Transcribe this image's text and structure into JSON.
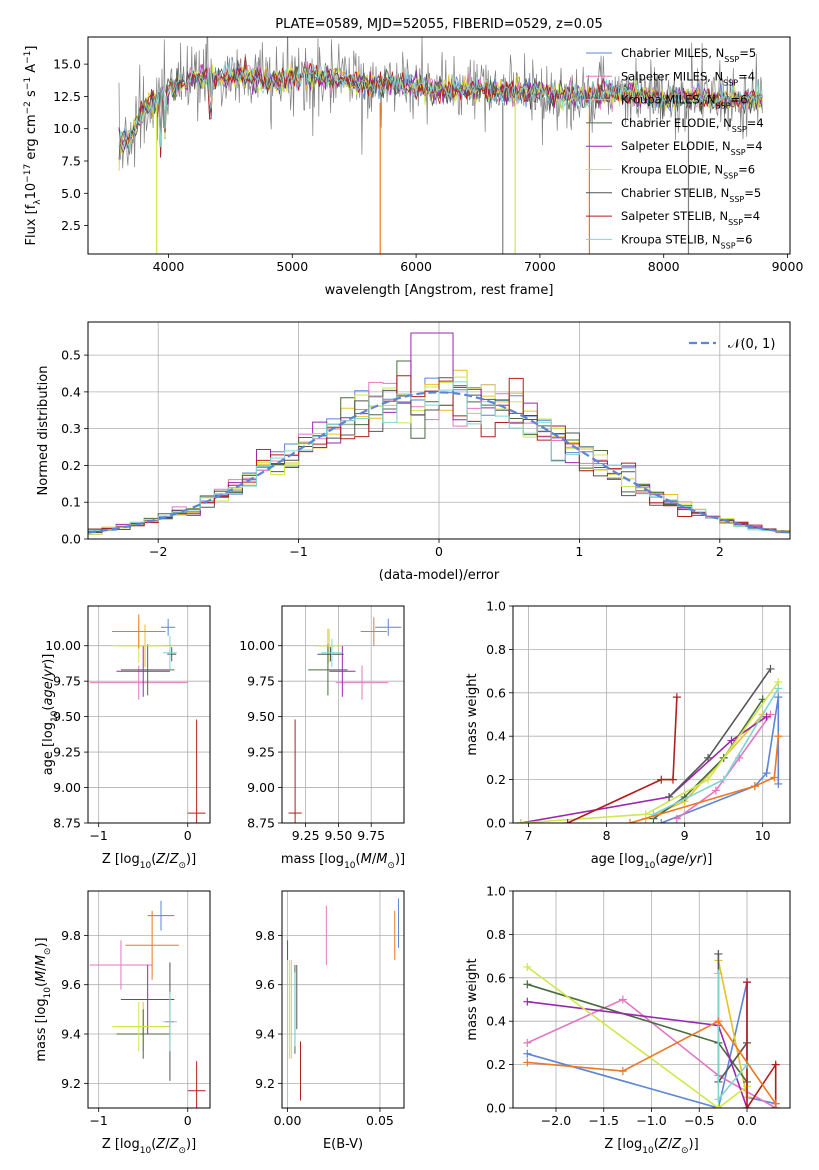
{
  "colors": {
    "Chabrier MILES": "#5b85d6",
    "Salpeter MILES": "#e377c2",
    "Kroupa MILES": "#e6c229",
    "Chabrier ELODIE": "#4a6a3f",
    "Salpeter ELODIE": "#9b27b0",
    "Kroupa ELODIE": "#cfe84a",
    "Chabrier STELIB": "#555555",
    "Salpeter STELIB": "#b21e1e",
    "Kroupa STELIB": "#80d5d2",
    "data": "#808080",
    "orange": "#ee7722",
    "gauss": "#5b85d6"
  },
  "chart_data": [
    {
      "id": "spectrum",
      "type": "line",
      "title": "PLATE=0589, MJD=52055, FIBERID=0529, z=0.05",
      "xlabel": "wavelength [Angstrom, rest frame]",
      "ylabel_parts": [
        "Flux [f",
        "λ",
        "10",
        "−17",
        " erg cm",
        "−2",
        " s",
        "−1",
        " A",
        "−1",
        "]"
      ],
      "xlim": [
        3350,
        9020
      ],
      "ylim": [
        0.3,
        17.1
      ],
      "xticks": [
        4000,
        5000,
        6000,
        7000,
        8000,
        9000
      ],
      "yticks": [
        2.5,
        5.0,
        7.5,
        10.0,
        12.5,
        15.0
      ],
      "xtick_labels": [
        "4000",
        "5000",
        "6000",
        "7000",
        "8000",
        "9000"
      ],
      "ytick_labels": [
        "2.5",
        "5.0",
        "7.5",
        "10.0",
        "12.5",
        "15.0"
      ],
      "continuum": [
        [
          3600,
          8.5
        ],
        [
          3700,
          9.5
        ],
        [
          3800,
          11.5
        ],
        [
          3950,
          12.5
        ],
        [
          4050,
          13.2
        ],
        [
          4200,
          14.0
        ],
        [
          4400,
          13.8
        ],
        [
          4600,
          14.2
        ],
        [
          4800,
          13.6
        ],
        [
          5000,
          13.9
        ],
        [
          5200,
          14.0
        ],
        [
          5400,
          13.8
        ],
        [
          5600,
          13.5
        ],
        [
          5800,
          13.5
        ],
        [
          6000,
          13.3
        ],
        [
          6200,
          13.0
        ],
        [
          6500,
          13.0
        ],
        [
          6800,
          12.8
        ],
        [
          7000,
          12.9
        ],
        [
          7200,
          12.5
        ],
        [
          7500,
          12.7
        ],
        [
          7700,
          12.8
        ],
        [
          8000,
          12.2
        ],
        [
          8200,
          12.5
        ],
        [
          8400,
          12.3
        ],
        [
          8600,
          12.2
        ],
        [
          8800,
          12.4
        ]
      ],
      "series": [
        {
          "name": "Chabrier MILES",
          "n_ssp": "=5"
        },
        {
          "name": "Salpeter MILES",
          "n_ssp": "=4"
        },
        {
          "name": "Kroupa MILES",
          "n_ssp": "=6"
        },
        {
          "name": "Chabrier ELODIE",
          "n_ssp": "=4"
        },
        {
          "name": "Salpeter ELODIE",
          "n_ssp": "=4"
        },
        {
          "name": "Kroupa ELODIE",
          "n_ssp": "=6"
        },
        {
          "name": "Chabrier STELIB",
          "n_ssp": "=5"
        },
        {
          "name": "Salpeter STELIB",
          "n_ssp": "=4"
        },
        {
          "name": "Kroupa STELIB",
          "n_ssp": "=6"
        }
      ],
      "legend": "upper right"
    },
    {
      "id": "residuals",
      "type": "histogram",
      "xlabel": "(data-model)/error",
      "ylabel": "Normed distribution",
      "xlim": [
        -2.5,
        2.5
      ],
      "ylim": [
        0,
        0.59
      ],
      "xticks": [
        -2,
        -1,
        0,
        1,
        2
      ],
      "yticks": [
        0.0,
        0.1,
        0.2,
        0.3,
        0.4,
        0.5
      ],
      "xtick_labels": [
        "−2",
        "−1",
        "0",
        "1",
        "2"
      ],
      "ytick_labels": [
        "0.0",
        "0.1",
        "0.2",
        "0.3",
        "0.4",
        "0.5"
      ],
      "legend_label": "𝒩(0, 1)",
      "legend": "upper right",
      "bin_width": 0.1
    },
    {
      "id": "age_vs_Z",
      "type": "errorbar",
      "xlabel": "Z [log10(Z/Z⊙)]",
      "ylabel": "age  [log10(age/yr)]",
      "xlim": [
        -1.12,
        0.25
      ],
      "ylim": [
        8.75,
        10.28
      ],
      "xticks": [
        -1,
        0
      ],
      "xtick_labels": [
        "−1",
        "0"
      ],
      "yticks": [
        8.75,
        9.0,
        9.25,
        9.5,
        9.75,
        10.0
      ],
      "ytick_labels": [
        "8.75",
        "9.00",
        "9.25",
        "9.50",
        "9.75",
        "10.00"
      ],
      "points": [
        {
          "s": "Chabrier MILES",
          "x": -0.22,
          "xe": 0.08,
          "y": 10.13,
          "ye": 0.06
        },
        {
          "s": "Salpeter MILES",
          "x": -0.55,
          "xe": 0.55,
          "y": 9.74,
          "ye": 0.12
        },
        {
          "s": "Kroupa MILES",
          "x": -0.48,
          "xe": 0.3,
          "y": 10.0,
          "ye": 0.15
        },
        {
          "s": "Chabrier ELODIE",
          "x": -0.45,
          "xe": 0.3,
          "y": 9.83,
          "ye": 0.18
        },
        {
          "s": "Salpeter ELODIE",
          "x": -0.5,
          "xe": 0.3,
          "y": 9.82,
          "ye": 0.18
        },
        {
          "s": "Kroupa ELODIE",
          "x": -0.55,
          "xe": 0.3,
          "y": 10.0,
          "ye": 0.12
        },
        {
          "s": "Chabrier STELIB",
          "x": -0.18,
          "xe": 0.05,
          "y": 9.94,
          "ye": 0.05
        },
        {
          "s": "Salpeter STELIB",
          "x": 0.1,
          "xe": 0.1,
          "y": 8.82,
          "ye": 0.66
        },
        {
          "s": "Kroupa STELIB",
          "x": -0.2,
          "xe": 0.08,
          "y": 9.95,
          "ye": 0.12
        },
        {
          "s": "orange",
          "x": -0.55,
          "xe": 0.3,
          "y": 10.1,
          "ye": 0.12
        }
      ]
    },
    {
      "id": "age_vs_mass",
      "type": "errorbar",
      "xlabel": "mass [log10(M/M⊙)]",
      "xlim": [
        9.07,
        10.0
      ],
      "ylim": [
        8.75,
        10.28
      ],
      "xticks": [
        9.25,
        9.5,
        9.75
      ],
      "xtick_labels": [
        "9.25",
        "9.50",
        "9.75"
      ],
      "yticks": [
        8.75,
        9.0,
        9.25,
        9.5,
        9.75,
        10.0
      ],
      "ytick_labels": [
        "8.75",
        "9.00",
        "9.25",
        "9.50",
        "9.75",
        "10.00"
      ],
      "points": [
        {
          "s": "Chabrier MILES",
          "x": 9.88,
          "xe": 0.1,
          "y": 10.13,
          "ye": 0.06
        },
        {
          "s": "Salpeter MILES",
          "x": 9.68,
          "xe": 0.2,
          "y": 9.74,
          "ye": 0.12
        },
        {
          "s": "Kroupa MILES",
          "x": 9.42,
          "xe": 0.1,
          "y": 10.0,
          "ye": 0.12
        },
        {
          "s": "Chabrier ELODIE",
          "x": 9.42,
          "xe": 0.15,
          "y": 9.83,
          "ye": 0.18
        },
        {
          "s": "Salpeter ELODIE",
          "x": 9.53,
          "xe": 0.1,
          "y": 9.82,
          "ye": 0.18
        },
        {
          "s": "Kroupa ELODIE",
          "x": 9.43,
          "xe": 0.1,
          "y": 10.0,
          "ye": 0.12
        },
        {
          "s": "Chabrier STELIB",
          "x": 9.44,
          "xe": 0.1,
          "y": 9.94,
          "ye": 0.05
        },
        {
          "s": "Salpeter STELIB",
          "x": 9.17,
          "xe": 0.05,
          "y": 8.82,
          "ye": 0.66
        },
        {
          "s": "Kroupa STELIB",
          "x": 9.45,
          "xe": 0.08,
          "y": 9.95,
          "ye": 0.1
        },
        {
          "s": "orange",
          "x": 9.77,
          "xe": 0.1,
          "y": 10.1,
          "ye": 0.1
        }
      ]
    },
    {
      "id": "mw_vs_age",
      "type": "line",
      "xlabel": "age  [log10(age/yr)]",
      "ylabel": "mass weight",
      "xlim": [
        6.8,
        10.35
      ],
      "ylim": [
        0,
        1
      ],
      "xticks": [
        7,
        8,
        9,
        10
      ],
      "xtick_labels": [
        "7",
        "8",
        "9",
        "10"
      ],
      "yticks": [
        0,
        0.2,
        0.4,
        0.6,
        0.8,
        1.0
      ],
      "ytick_labels": [
        "0.0",
        "0.2",
        "0.4",
        "0.6",
        "0.8",
        "1.0"
      ],
      "series": [
        {
          "s": "Chabrier MILES",
          "x": [
            8.7,
            9.9,
            10.05,
            10.2,
            10.2
          ],
          "y": [
            0.0,
            0.17,
            0.23,
            0.58,
            0.18
          ]
        },
        {
          "s": "Salpeter MILES",
          "x": [
            8.9,
            9.4,
            9.7,
            10.1
          ],
          "y": [
            0.02,
            0.15,
            0.3,
            0.5
          ]
        },
        {
          "s": "Kroupa MILES",
          "x": [
            8.5,
            9.0,
            9.5,
            10.0
          ],
          "y": [
            0.02,
            0.1,
            0.3,
            0.5
          ]
        },
        {
          "s": "Chabrier ELODIE",
          "x": [
            8.6,
            9.0,
            9.5,
            10.0
          ],
          "y": [
            0.02,
            0.12,
            0.3,
            0.57
          ]
        },
        {
          "s": "Salpeter ELODIE",
          "x": [
            6.9,
            8.8,
            9.6,
            10.05
          ],
          "y": [
            0.0,
            0.12,
            0.38,
            0.49
          ]
        },
        {
          "s": "Kroupa ELODIE",
          "x": [
            6.9,
            8.5,
            9.3,
            10.2
          ],
          "y": [
            0.0,
            0.04,
            0.2,
            0.65
          ]
        },
        {
          "s": "Chabrier STELIB",
          "x": [
            8.8,
            9.3,
            10.1
          ],
          "y": [
            0.12,
            0.3,
            0.71
          ]
        },
        {
          "s": "Salpeter STELIB",
          "x": [
            7.5,
            8.7,
            8.85,
            8.9
          ],
          "y": [
            0.0,
            0.2,
            0.2,
            0.58
          ]
        },
        {
          "s": "Kroupa STELIB",
          "x": [
            8.6,
            9.5,
            10.2
          ],
          "y": [
            0.04,
            0.2,
            0.62
          ]
        },
        {
          "s": "orange",
          "x": [
            8.3,
            9.9,
            10.15,
            10.2
          ],
          "y": [
            0.0,
            0.17,
            0.21,
            0.4
          ]
        }
      ]
    },
    {
      "id": "mass_vs_Z",
      "type": "errorbar",
      "xlabel": "Z [log10(Z/Z⊙)]",
      "ylabel": "mass [log10(M/M⊙)]",
      "xlim": [
        -1.12,
        0.25
      ],
      "ylim": [
        9.1,
        9.98
      ],
      "xticks": [
        -1,
        0
      ],
      "xtick_labels": [
        "−1",
        "0"
      ],
      "yticks": [
        9.2,
        9.4,
        9.6,
        9.8
      ],
      "ytick_labels": [
        "9.2",
        "9.4",
        "9.6",
        "9.8"
      ],
      "points": [
        {
          "s": "Chabrier MILES",
          "x": -0.3,
          "xe": 0.15,
          "y": 9.88,
          "ye": 0.06
        },
        {
          "s": "Salpeter MILES",
          "x": -0.75,
          "xe": 0.35,
          "y": 9.68,
          "ye": 0.1
        },
        {
          "s": "Kroupa MILES",
          "x": -0.5,
          "xe": 0.3,
          "y": 9.43,
          "ye": 0.1
        },
        {
          "s": "Chabrier ELODIE",
          "x": -0.5,
          "xe": 0.3,
          "y": 9.4,
          "ye": 0.1
        },
        {
          "s": "Salpeter ELODIE",
          "x": -0.45,
          "xe": 0.3,
          "y": 9.54,
          "ye": 0.14
        },
        {
          "s": "Kroupa ELODIE",
          "x": -0.55,
          "xe": 0.3,
          "y": 9.43,
          "ye": 0.1
        },
        {
          "s": "Chabrier STELIB",
          "x": -0.2,
          "xe": 0.05,
          "y": 9.45,
          "ye": 0.24
        },
        {
          "s": "Salpeter STELIB",
          "x": 0.1,
          "xe": 0.1,
          "y": 9.17,
          "ye": 0.12
        },
        {
          "s": "Kroupa STELIB",
          "x": -0.2,
          "xe": 0.08,
          "y": 9.45,
          "ye": 0.12
        },
        {
          "s": "orange",
          "x": -0.4,
          "xe": 0.3,
          "y": 9.76,
          "ye": 0.14
        }
      ]
    },
    {
      "id": "mass_vs_ebv",
      "type": "errorbar",
      "xlabel": "E(B-V)",
      "xlim": [
        -0.003,
        0.063
      ],
      "ylim": [
        9.1,
        9.98
      ],
      "xticks": [
        0.0,
        0.05
      ],
      "xtick_labels": [
        "0.00",
        "0.05"
      ],
      "yticks": [
        9.2,
        9.4,
        9.6,
        9.8
      ],
      "ytick_labels": [
        "9.2",
        "9.4",
        "9.6",
        "9.8"
      ],
      "points": [
        {
          "s": "Chabrier MILES",
          "x": 0.06,
          "xe": 0,
          "y": 9.85,
          "ye": 0.1
        },
        {
          "s": "Salpeter MILES",
          "x": 0.021,
          "xe": 0,
          "y": 9.8,
          "ye": 0.12
        },
        {
          "s": "Kroupa MILES",
          "x": 0.002,
          "xe": 0,
          "y": 9.5,
          "ye": 0.2
        },
        {
          "s": "Chabrier ELODIE",
          "x": 0.004,
          "xe": 0,
          "y": 9.5,
          "ye": 0.18
        },
        {
          "s": "Salpeter ELODIE",
          "x": 0.0,
          "xe": 0,
          "y": 9.74,
          "ye": 0.04
        },
        {
          "s": "Kroupa ELODIE",
          "x": 0.001,
          "xe": 0,
          "y": 9.5,
          "ye": 0.2
        },
        {
          "s": "Chabrier STELIB",
          "x": 0.005,
          "xe": 0,
          "y": 9.55,
          "ye": 0.13
        },
        {
          "s": "Salpeter STELIB",
          "x": 0.007,
          "xe": 0,
          "y": 9.25,
          "ye": 0.12
        },
        {
          "s": "Kroupa STELIB",
          "x": 0.004,
          "xe": 0,
          "y": 9.5,
          "ye": 0.15
        },
        {
          "s": "orange",
          "x": 0.058,
          "xe": 0,
          "y": 9.8,
          "ye": 0.1
        }
      ]
    },
    {
      "id": "mw_vs_Z",
      "type": "line",
      "xlabel": "Z [log10(Z/Z⊙)]",
      "ylabel": "mass weight",
      "xlim": [
        -2.45,
        0.45
      ],
      "ylim": [
        0,
        1
      ],
      "xticks": [
        -2.0,
        -1.5,
        -1.0,
        -0.5,
        0.0
      ],
      "xtick_labels": [
        "−2.0",
        "−1.5",
        "−1.0",
        "−0.5",
        "0.0"
      ],
      "yticks": [
        0,
        0.2,
        0.4,
        0.6,
        0.8,
        1.0
      ],
      "ytick_labels": [
        "0.0",
        "0.2",
        "0.4",
        "0.6",
        "0.8",
        "1.0"
      ],
      "series": [
        {
          "s": "Chabrier MILES",
          "x": [
            -2.3,
            -0.3,
            0.0,
            0.0,
            0.3
          ],
          "y": [
            0.25,
            0.0,
            0.58,
            0.05,
            0.02
          ]
        },
        {
          "s": "Salpeter MILES",
          "x": [
            -2.3,
            -1.3,
            -0.3,
            0.3
          ],
          "y": [
            0.3,
            0.5,
            0.15,
            0.0
          ]
        },
        {
          "s": "Kroupa MILES",
          "x": [
            -0.3,
            0.0,
            0.0
          ],
          "y": [
            0.68,
            0.05,
            0.2
          ]
        },
        {
          "s": "Chabrier ELODIE",
          "x": [
            -2.3,
            -0.3,
            0.0
          ],
          "y": [
            0.57,
            0.3,
            0.12
          ]
        },
        {
          "s": "Salpeter ELODIE",
          "x": [
            -2.3,
            -0.3,
            0.0
          ],
          "y": [
            0.49,
            0.38,
            0.0
          ]
        },
        {
          "s": "Kroupa ELODIE",
          "x": [
            -2.3,
            -0.3,
            0.0
          ],
          "y": [
            0.65,
            0.0,
            0.1
          ]
        },
        {
          "s": "Chabrier STELIB",
          "x": [
            -0.3,
            -0.3,
            0.0
          ],
          "y": [
            0.71,
            0.12,
            0.3
          ]
        },
        {
          "s": "Salpeter STELIB",
          "x": [
            0.0,
            0.0,
            0.3,
            0.3
          ],
          "y": [
            0.58,
            0.0,
            0.2,
            0.0
          ]
        },
        {
          "s": "Kroupa STELIB",
          "x": [
            -0.3,
            -0.3,
            0.0
          ],
          "y": [
            0.62,
            0.04,
            0.2
          ]
        },
        {
          "s": "orange",
          "x": [
            -2.3,
            -1.3,
            -0.3,
            0.3
          ],
          "y": [
            0.21,
            0.17,
            0.4,
            0.02
          ]
        }
      ]
    }
  ]
}
